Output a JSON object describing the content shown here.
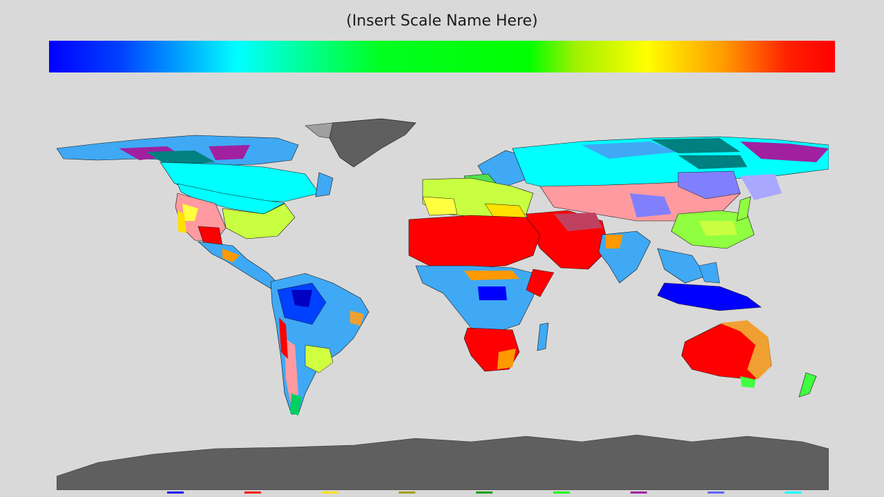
{
  "scale": {
    "title": "(Insert Scale Name Here)",
    "gradient_stops": [
      {
        "offset": 0.0,
        "color": "#0000ff"
      },
      {
        "offset": 0.09,
        "color": "#0040ff"
      },
      {
        "offset": 0.24,
        "color": "#00ffff"
      },
      {
        "offset": 0.42,
        "color": "#00ff20"
      },
      {
        "offset": 0.61,
        "color": "#00ff00"
      },
      {
        "offset": 0.67,
        "color": "#a0f000"
      },
      {
        "offset": 0.76,
        "color": "#ffff00"
      },
      {
        "offset": 0.86,
        "color": "#ff9900"
      },
      {
        "offset": 0.94,
        "color": "#ff2000"
      },
      {
        "offset": 1.0,
        "color": "#ff0000"
      }
    ]
  },
  "map": {
    "background": "#d9d9d9",
    "ice_color": "#5f5f5f",
    "legend_colors": [
      "#0000ff",
      "#ff0000",
      "#ffe000",
      "#a0a000",
      "#00a000",
      "#00ff00",
      "#a020a0",
      "#6060ff",
      "#00ffff",
      "#808080"
    ]
  }
}
